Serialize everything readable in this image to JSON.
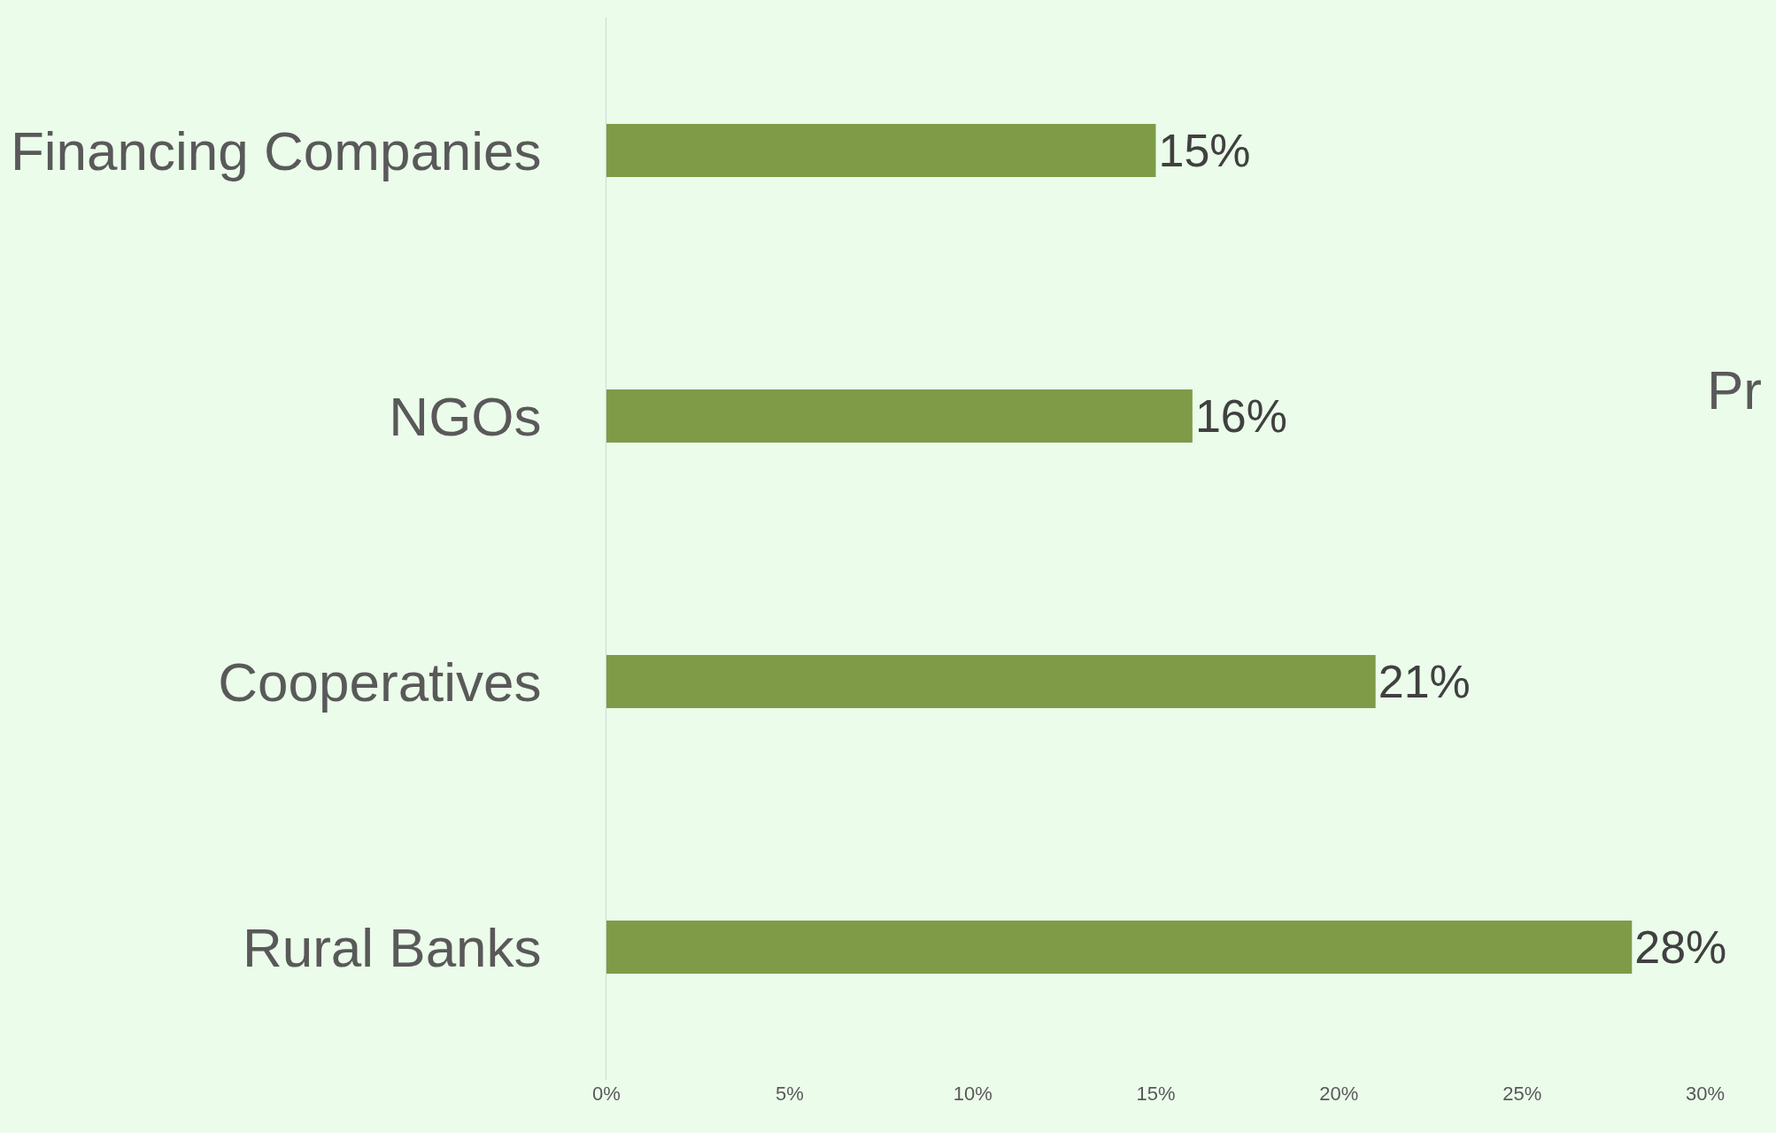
{
  "chart_data": {
    "type": "bar",
    "orientation": "horizontal",
    "categories": [
      "Financing Companies",
      "NGOs",
      "Cooperatives",
      "Rural Banks"
    ],
    "values": [
      15,
      16,
      21,
      28
    ],
    "value_labels": [
      "15%",
      "16%",
      "21%",
      "28%"
    ],
    "color": "#7f9b48",
    "xlim": [
      0,
      30
    ],
    "xticks": [
      {
        "value": 0,
        "label": "0%"
      },
      {
        "value": 5,
        "label": "5%"
      },
      {
        "value": 10,
        "label": "10%"
      },
      {
        "value": 15,
        "label": "15%"
      },
      {
        "value": 20,
        "label": "20%"
      },
      {
        "value": 25,
        "label": "25%"
      },
      {
        "value": 30,
        "label": "30%"
      }
    ],
    "grid": false,
    "legend": false,
    "annotations": [
      "Pr"
    ]
  }
}
